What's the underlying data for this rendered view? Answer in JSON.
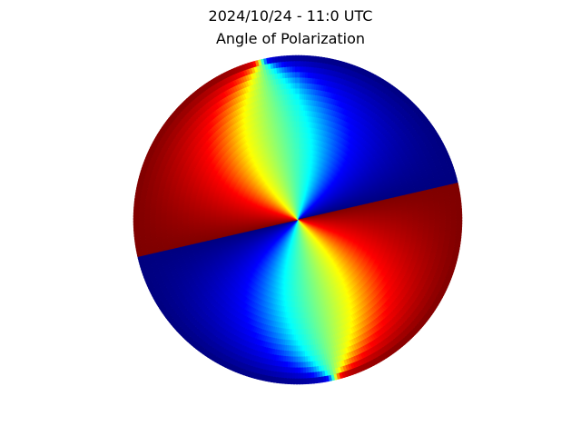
{
  "figure": {
    "timestamp": "2024/10/24 - 11:0 UTC",
    "title": "Angle of Polarization"
  },
  "chart_data": {
    "type": "heatmap",
    "projection": "polar",
    "title": "Angle of Polarization",
    "subtitle": "2024/10/24 - 11:0 UTC",
    "colormap": "jet",
    "colormap_stops": [
      "#00007f",
      "#0000ff",
      "#00ffff",
      "#7fff7f",
      "#ffff00",
      "#ff0000",
      "#7f0000"
    ],
    "value_range": [
      -90,
      90
    ],
    "value_units": "degrees",
    "sun_azimuth_deg": 167,
    "axes": "off",
    "grid": false,
    "legend": "none",
    "azimuth_samples": 360,
    "radius_samples": 30
  }
}
